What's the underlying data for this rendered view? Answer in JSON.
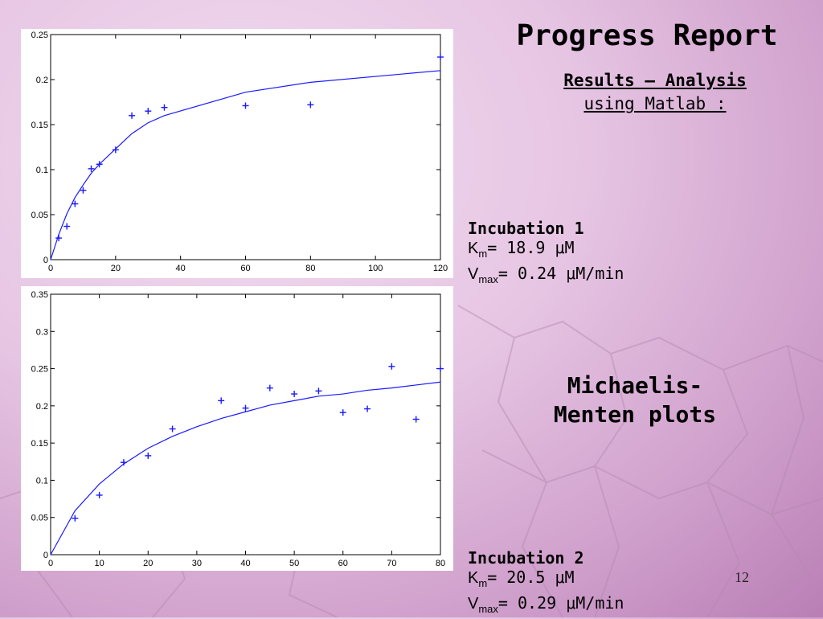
{
  "slide": {
    "title": "Progress Report",
    "subtitle_part1": "Results – Analysis",
    "subtitle_part2": "using Matlab :",
    "plot_caption_line1": "Michaelis-",
    "plot_caption_line2": "Menten plots",
    "page_number": "12"
  },
  "incubation1": {
    "heading": "Incubation 1",
    "km_symbol": "K",
    "km_sub": "m",
    "km_value": "= 18.9 μM",
    "vmax_symbol": "V",
    "vmax_sub": "max",
    "vmax_value": "= 0.24 μM/min"
  },
  "incubation2": {
    "heading": "Incubation 2",
    "km_symbol": "K",
    "km_sub": "m",
    "km_value": "= 20.5 μM",
    "vmax_symbol": "V",
    "vmax_sub": "max",
    "vmax_value": "= 0.29 μM/min"
  },
  "colors": {
    "series": "#1a1aff",
    "axis": "#000000"
  },
  "chart_data": [
    {
      "type": "scatter",
      "title": "",
      "xlabel": "",
      "ylabel": "",
      "xlim": [
        0,
        120
      ],
      "ylim": [
        0,
        0.25
      ],
      "xticks": [
        0,
        20,
        40,
        60,
        80,
        100,
        120
      ],
      "yticks": [
        0,
        0.05,
        0.1,
        0.15,
        0.2,
        0.25
      ],
      "xtick_labels": [
        "0",
        "20",
        "40",
        "60",
        "80",
        "100",
        "120"
      ],
      "ytick_labels": [
        "0",
        "0.05",
        "0.1",
        "0.15",
        "0.2",
        "0.25"
      ],
      "grid": false,
      "series": [
        {
          "marker": "plus",
          "x": [
            2.5,
            5,
            7.5,
            10,
            12.5,
            15,
            20,
            25,
            30,
            35,
            60,
            80,
            120
          ],
          "y": [
            0.024,
            0.037,
            0.062,
            0.077,
            0.101,
            0.106,
            0.122,
            0.16,
            0.165,
            0.169,
            0.171,
            0.172,
            0.225
          ]
        },
        {
          "line": true,
          "x": [
            0,
            2.5,
            5,
            7.5,
            10,
            12.5,
            15,
            20,
            25,
            30,
            35,
            60,
            80,
            120
          ],
          "y": [
            0,
            0.028,
            0.051,
            0.069,
            0.083,
            0.096,
            0.106,
            0.123,
            0.14,
            0.152,
            0.16,
            0.186,
            0.197,
            0.21
          ]
        }
      ]
    },
    {
      "type": "scatter",
      "title": "",
      "xlabel": "",
      "ylabel": "",
      "xlim": [
        0,
        80
      ],
      "ylim": [
        0,
        0.35
      ],
      "xticks": [
        0,
        10,
        20,
        30,
        40,
        50,
        60,
        70,
        80
      ],
      "yticks": [
        0,
        0.05,
        0.1,
        0.15,
        0.2,
        0.25,
        0.3,
        0.35
      ],
      "xtick_labels": [
        "0",
        "10",
        "20",
        "30",
        "40",
        "50",
        "60",
        "70",
        "80"
      ],
      "ytick_labels": [
        "0",
        "0.05",
        "0.1",
        "0.15",
        "0.2",
        "0.25",
        "0.3",
        "0.35"
      ],
      "grid": false,
      "series": [
        {
          "marker": "plus",
          "x": [
            5,
            10,
            15,
            20,
            25,
            35,
            40,
            45,
            50,
            55,
            60,
            65,
            70,
            75,
            80
          ],
          "y": [
            0.049,
            0.08,
            0.124,
            0.133,
            0.169,
            0.207,
            0.197,
            0.224,
            0.216,
            0.22,
            0.191,
            0.196,
            0.253,
            0.182,
            0.25
          ]
        },
        {
          "line": true,
          "x": [
            0,
            5,
            10,
            15,
            20,
            25,
            30,
            35,
            40,
            45,
            50,
            55,
            60,
            65,
            70,
            75,
            80
          ],
          "y": [
            0,
            0.059,
            0.095,
            0.122,
            0.143,
            0.159,
            0.172,
            0.183,
            0.192,
            0.201,
            0.207,
            0.213,
            0.216,
            0.221,
            0.224,
            0.228,
            0.232
          ]
        }
      ]
    }
  ]
}
